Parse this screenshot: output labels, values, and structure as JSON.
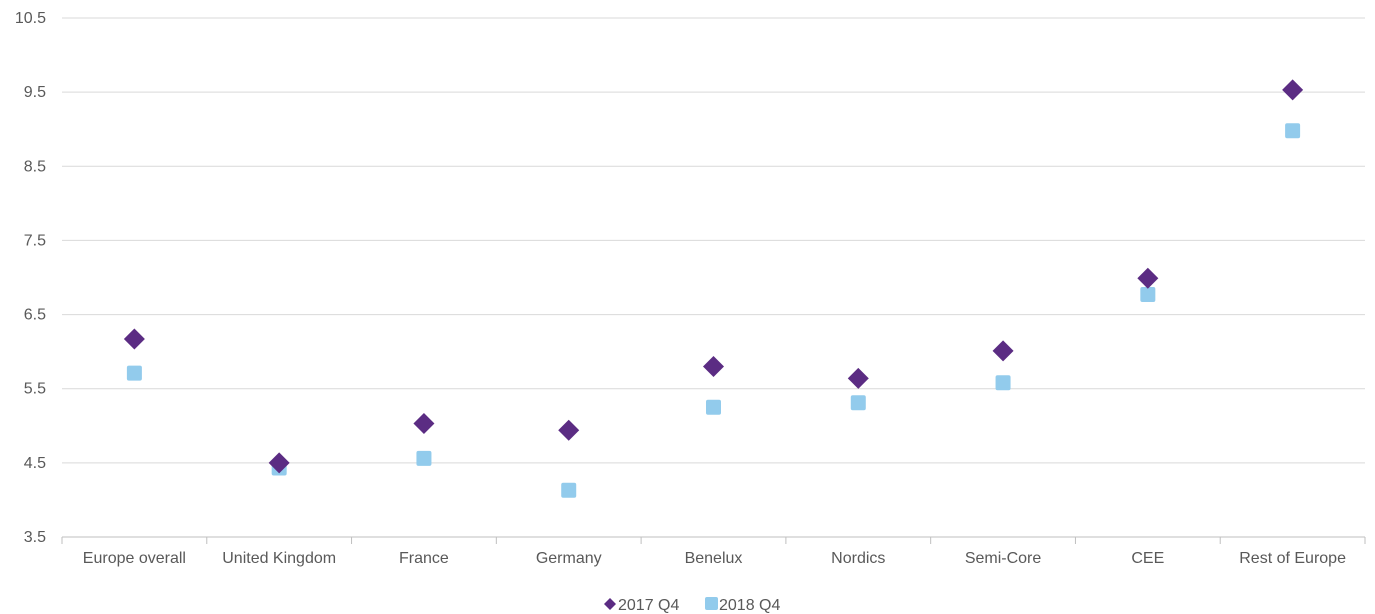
{
  "chart_data": {
    "type": "scatter",
    "title": "",
    "xlabel": "",
    "ylabel": "",
    "ylim": [
      3.5,
      10.5
    ],
    "yticks": [
      "3.5",
      "4.5",
      "5.5",
      "6.5",
      "7.5",
      "8.5",
      "9.5",
      "10.5"
    ],
    "grid": true,
    "legend_position": "bottom",
    "categories": [
      "Europe overall",
      "United Kingdom",
      "France",
      "Germany",
      "Benelux",
      "Nordics",
      "Semi-Core",
      "CEE",
      "Rest of Europe"
    ],
    "series": [
      {
        "name": "2017 Q4",
        "marker": "diamond",
        "color": "#5b2c83",
        "values": [
          6.17,
          4.5,
          5.03,
          4.94,
          5.8,
          5.64,
          6.01,
          6.99,
          9.53
        ]
      },
      {
        "name": "2018 Q4",
        "marker": "square",
        "color": "#92cbec",
        "values": [
          5.71,
          4.43,
          4.56,
          4.13,
          5.25,
          5.31,
          5.58,
          6.77,
          8.98
        ]
      }
    ]
  }
}
